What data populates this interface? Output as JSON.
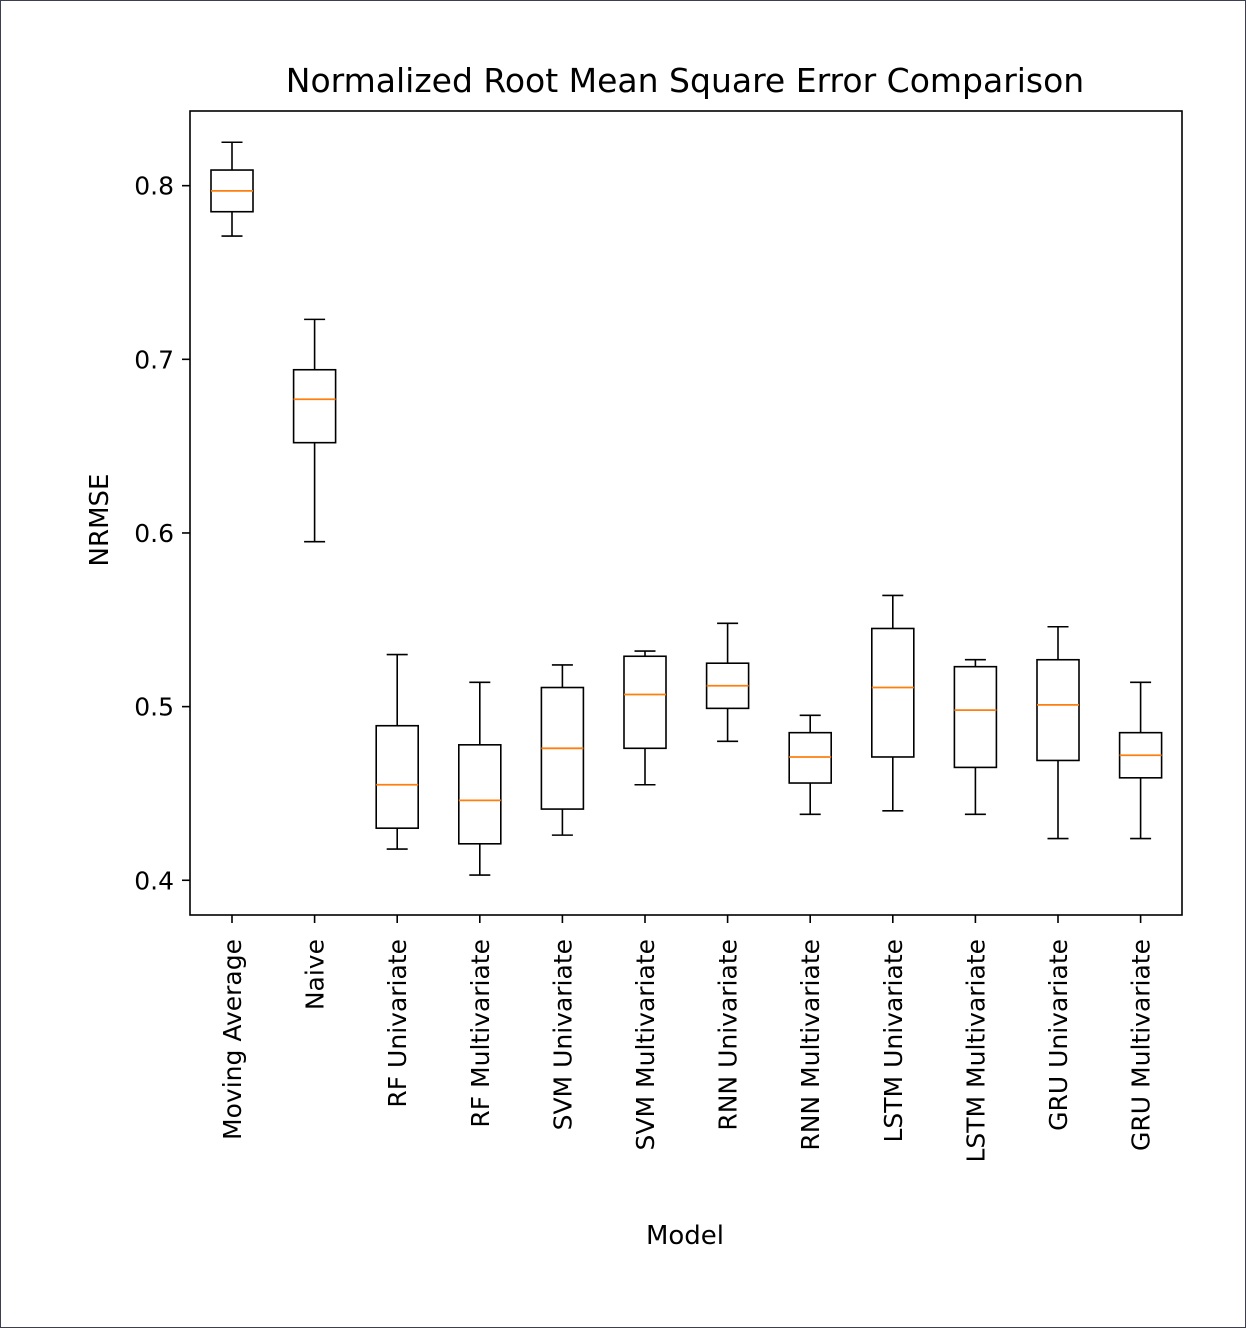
{
  "chart_data": {
    "type": "box",
    "title": "Normalized Root Mean Square Error Comparison",
    "xlabel": "Model",
    "ylabel": "NRMSE",
    "ylim": [
      0.38,
      0.843
    ],
    "yticks": [
      0.4,
      0.5,
      0.6,
      0.7,
      0.8
    ],
    "ytick_labels": [
      "0.4",
      "0.5",
      "0.6",
      "0.7",
      "0.8"
    ],
    "grid": false,
    "colors": {
      "box": "#000000",
      "median": "#ff7f0e"
    },
    "categories": [
      "Moving Average",
      "Naive",
      "RF Univariate",
      "RF Multivariate",
      "SVM Univariate",
      "SVM Multivariate",
      "RNN Univariate",
      "RNN Multivariate",
      "LSTM Univariate",
      "LSTM Multivariate",
      "GRU Univariate",
      "GRU Multivariate"
    ],
    "boxes": [
      {
        "min": 0.771,
        "q1": 0.785,
        "median": 0.797,
        "q3": 0.809,
        "max": 0.825
      },
      {
        "min": 0.595,
        "q1": 0.652,
        "median": 0.677,
        "q3": 0.694,
        "max": 0.723
      },
      {
        "min": 0.418,
        "q1": 0.43,
        "median": 0.455,
        "q3": 0.489,
        "max": 0.53
      },
      {
        "min": 0.403,
        "q1": 0.421,
        "median": 0.446,
        "q3": 0.478,
        "max": 0.514
      },
      {
        "min": 0.426,
        "q1": 0.441,
        "median": 0.476,
        "q3": 0.511,
        "max": 0.524
      },
      {
        "min": 0.455,
        "q1": 0.476,
        "median": 0.507,
        "q3": 0.529,
        "max": 0.532
      },
      {
        "min": 0.48,
        "q1": 0.499,
        "median": 0.512,
        "q3": 0.525,
        "max": 0.548
      },
      {
        "min": 0.438,
        "q1": 0.456,
        "median": 0.471,
        "q3": 0.485,
        "max": 0.495
      },
      {
        "min": 0.44,
        "q1": 0.471,
        "median": 0.511,
        "q3": 0.545,
        "max": 0.564
      },
      {
        "min": 0.438,
        "q1": 0.465,
        "median": 0.498,
        "q3": 0.523,
        "max": 0.527
      },
      {
        "min": 0.424,
        "q1": 0.469,
        "median": 0.501,
        "q3": 0.527,
        "max": 0.546
      },
      {
        "min": 0.424,
        "q1": 0.459,
        "median": 0.472,
        "q3": 0.485,
        "max": 0.514
      }
    ]
  }
}
